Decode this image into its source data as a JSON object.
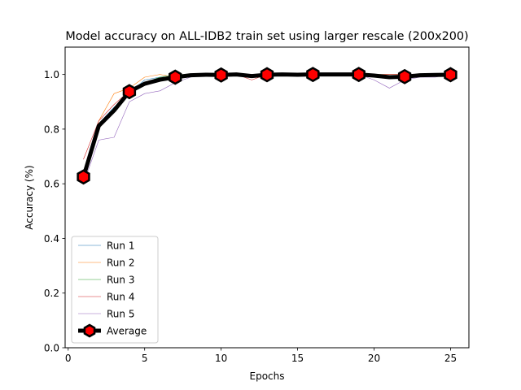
{
  "chart_data": {
    "type": "line",
    "title": "Model accuracy on ALL-IDB2 train set using larger rescale (200x200)",
    "xlabel": "Epochs",
    "ylabel": "Accuracy (%)",
    "xlim": [
      -0.2,
      26.2
    ],
    "ylim": [
      0.0,
      1.1
    ],
    "xticks": [
      0,
      5,
      10,
      15,
      20,
      25
    ],
    "yticks": [
      0.0,
      0.2,
      0.4,
      0.6,
      0.8,
      1.0
    ],
    "xtick_labels": [
      "0",
      "5",
      "10",
      "15",
      "20",
      "25"
    ],
    "ytick_labels": [
      "0.0",
      "0.2",
      "0.4",
      "0.6",
      "0.8",
      "1.0"
    ],
    "grid": false,
    "legend_position": "lower-left",
    "x": [
      1,
      2,
      3,
      4,
      5,
      6,
      7,
      8,
      9,
      10,
      11,
      12,
      13,
      14,
      15,
      16,
      17,
      18,
      19,
      20,
      21,
      22,
      23,
      24,
      25
    ],
    "series": [
      {
        "name": "Run 1",
        "color": "#1f77b4",
        "values": [
          0.62,
          0.82,
          0.88,
          0.93,
          0.98,
          0.99,
          0.99,
          1.0,
          1.0,
          1.0,
          1.0,
          0.99,
          1.0,
          1.0,
          1.0,
          1.0,
          1.0,
          1.0,
          1.0,
          1.0,
          0.99,
          0.99,
          1.0,
          1.0,
          1.0
        ]
      },
      {
        "name": "Run 2",
        "color": "#ff7f0e",
        "values": [
          0.64,
          0.83,
          0.93,
          0.95,
          0.99,
          1.0,
          0.99,
          1.0,
          1.0,
          1.0,
          1.0,
          1.0,
          1.0,
          1.0,
          1.0,
          1.0,
          1.0,
          1.0,
          1.0,
          1.0,
          1.0,
          1.0,
          1.0,
          1.0,
          1.0
        ]
      },
      {
        "name": "Run 3",
        "color": "#2ca02c",
        "values": [
          0.6,
          0.82,
          0.87,
          0.94,
          0.97,
          0.99,
          1.0,
          1.0,
          1.0,
          1.0,
          1.0,
          1.0,
          1.0,
          1.0,
          1.0,
          1.0,
          1.0,
          1.0,
          1.0,
          1.0,
          1.0,
          1.0,
          1.0,
          1.0,
          1.0
        ]
      },
      {
        "name": "Run 4",
        "color": "#d62728",
        "values": [
          0.69,
          0.83,
          0.89,
          0.94,
          0.97,
          0.98,
          0.99,
          1.0,
          1.0,
          1.0,
          1.0,
          0.98,
          1.0,
          1.0,
          1.0,
          1.0,
          1.0,
          1.0,
          1.0,
          1.0,
          1.0,
          1.0,
          1.0,
          1.0,
          1.0
        ]
      },
      {
        "name": "Run 5",
        "color": "#9467bd",
        "values": [
          0.6,
          0.76,
          0.77,
          0.9,
          0.93,
          0.94,
          0.97,
          0.99,
          1.0,
          1.0,
          1.0,
          1.0,
          1.0,
          1.0,
          1.0,
          1.0,
          1.0,
          1.0,
          1.0,
          0.98,
          0.95,
          0.98,
          0.99,
          0.99,
          1.0
        ]
      },
      {
        "name": "Average",
        "color": "#000000",
        "marker_fill": "#ff0000",
        "marker_every": 3,
        "values": [
          0.625,
          0.812,
          0.868,
          0.937,
          0.966,
          0.981,
          0.99,
          0.997,
          0.999,
          0.998,
          1.0,
          0.994,
          0.999,
          1.0,
          0.999,
          1.0,
          1.0,
          1.0,
          1.0,
          0.996,
          0.99,
          0.992,
          0.997,
          0.998,
          0.999
        ]
      }
    ]
  }
}
